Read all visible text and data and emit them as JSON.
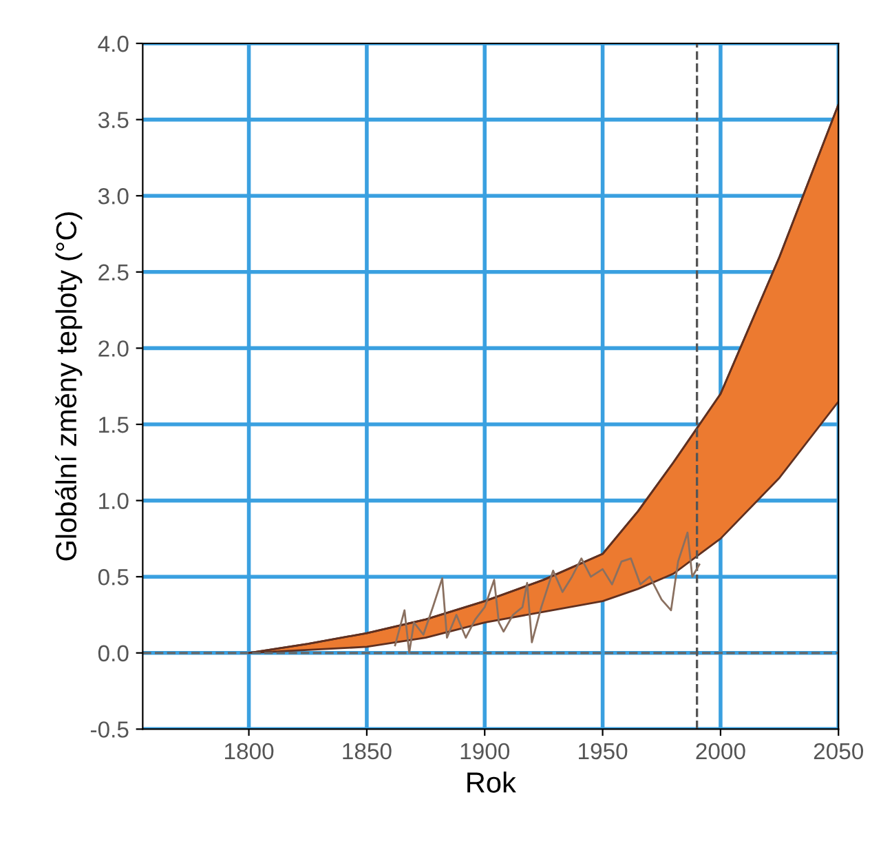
{
  "chart_data": {
    "type": "area",
    "xlabel": "Rok",
    "ylabel": "Globální změny teploty (°C)",
    "xlim": [
      1755,
      2050
    ],
    "xticks": [
      1800,
      1850,
      1900,
      1950,
      2000,
      2050
    ],
    "ylim": [
      -0.5,
      4.0
    ],
    "yticks": [
      -0.5,
      {
        "value": 0,
        "label": "0.0"
      },
      0.5,
      {
        "value": 1,
        "label": "1.0"
      },
      1.5,
      {
        "value": 2,
        "label": "2.0"
      },
      2.5,
      {
        "value": 3,
        "label": "3.0"
      },
      3.5,
      {
        "value": 4,
        "label": "4.0"
      }
    ],
    "grid": true,
    "series": [
      {
        "type": "line",
        "color": "#603020",
        "x": [
          1800,
          1825,
          1850,
          1875,
          1900,
          1925,
          1950,
          1965,
          1980,
          2000,
          2025,
          2050
        ],
        "lower": [
          0.0,
          0.02,
          0.04,
          0.1,
          0.2,
          0.27,
          0.34,
          0.42,
          0.52,
          0.75,
          1.15,
          1.65
        ],
        "values": [
          0.0,
          0.06,
          0.13,
          0.22,
          0.34,
          0.48,
          0.65,
          0.93,
          1.25,
          1.7,
          2.6,
          3.6
        ],
        "upper": [
          0.0,
          0.06,
          0.13,
          0.22,
          0.34,
          0.48,
          0.65,
          0.93,
          1.25,
          1.7,
          2.6,
          3.6
        ]
      },
      {
        "type": "line",
        "color": "#8a7060",
        "x": [
          1862,
          1866,
          1868,
          1870,
          1874,
          1878,
          1882,
          1884,
          1888,
          1892,
          1896,
          1900,
          1904,
          1906,
          1908,
          1912,
          1916,
          1918,
          1920,
          1924,
          1929,
          1933,
          1937,
          1941,
          1945,
          1950,
          1954,
          1958,
          1962,
          1966,
          1970,
          1975,
          1979,
          1982,
          1986,
          1988,
          1991
        ],
        "values": [
          0.05,
          0.28,
          0.0,
          0.2,
          0.12,
          0.3,
          0.49,
          0.1,
          0.25,
          0.1,
          0.22,
          0.3,
          0.48,
          0.2,
          0.14,
          0.25,
          0.3,
          0.46,
          0.07,
          0.3,
          0.54,
          0.4,
          0.5,
          0.62,
          0.5,
          0.55,
          0.45,
          0.6,
          0.62,
          0.45,
          0.5,
          0.35,
          0.28,
          0.6,
          0.79,
          0.5,
          0.58
        ]
      }
    ],
    "ref_lines": [
      {
        "axis": "y",
        "value": 0.0,
        "line_style": "dashed",
        "color": "#666666"
      },
      {
        "axis": "x",
        "value": 1990,
        "line_style": "dashed",
        "color": "#555555"
      }
    ]
  }
}
